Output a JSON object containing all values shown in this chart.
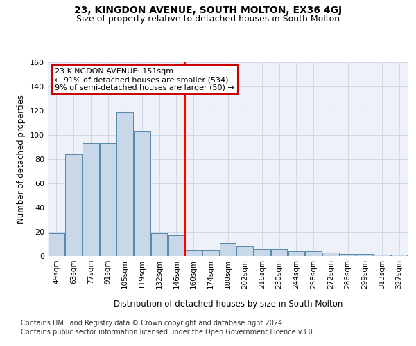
{
  "title": "23, KINGDON AVENUE, SOUTH MOLTON, EX36 4GJ",
  "subtitle": "Size of property relative to detached houses in South Molton",
  "xlabel": "Distribution of detached houses by size in South Molton",
  "ylabel": "Number of detached properties",
  "categories": [
    "49sqm",
    "63sqm",
    "77sqm",
    "91sqm",
    "105sqm",
    "119sqm",
    "132sqm",
    "146sqm",
    "160sqm",
    "174sqm",
    "188sqm",
    "202sqm",
    "216sqm",
    "230sqm",
    "244sqm",
    "258sqm",
    "272sqm",
    "286sqm",
    "299sqm",
    "313sqm",
    "327sqm"
  ],
  "values": [
    19,
    84,
    93,
    93,
    119,
    103,
    19,
    17,
    5,
    5,
    11,
    8,
    6,
    6,
    4,
    4,
    3,
    2,
    2,
    1,
    1
  ],
  "bar_color": "#c8d8e8",
  "bar_edge_color": "#5588aa",
  "grid_color": "#d0d8e8",
  "background_color": "#eef2f8",
  "red_line_x": 7.5,
  "annotation_text": "23 KINGDON AVENUE: 151sqm\n← 91% of detached houses are smaller (534)\n9% of semi-detached houses are larger (50) →",
  "annotation_box_color": "#ffffff",
  "annotation_box_edge": "#cc0000",
  "annotation_fontsize": 8.0,
  "ylim": [
    0,
    160
  ],
  "yticks": [
    0,
    20,
    40,
    60,
    80,
    100,
    120,
    140,
    160
  ],
  "footer_line1": "Contains HM Land Registry data © Crown copyright and database right 2024.",
  "footer_line2": "Contains public sector information licensed under the Open Government Licence v3.0.",
  "title_fontsize": 10,
  "subtitle_fontsize": 9,
  "xlabel_fontsize": 8.5,
  "ylabel_fontsize": 8.5,
  "footer_fontsize": 7.0,
  "tick_fontsize": 7.5,
  "ytick_fontsize": 8.0
}
